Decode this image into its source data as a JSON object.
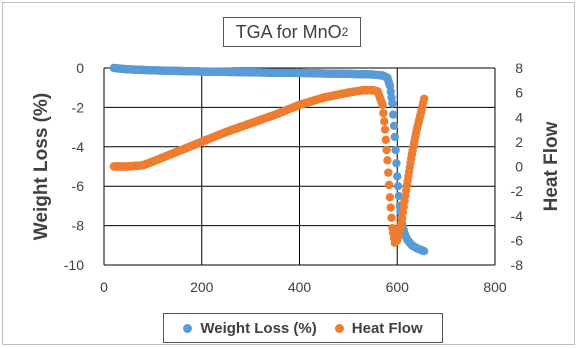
{
  "chart_data": {
    "type": "scatter",
    "title_main": "TGA for MnO",
    "title_sub": "2",
    "xlabel": "",
    "ylabel": "Weight Loss (%)",
    "y2label": "Heat Flow",
    "xlim": [
      0,
      800
    ],
    "ylim": [
      -10,
      0
    ],
    "y2lim": [
      -8,
      8
    ],
    "x_ticks": [
      "0",
      "200",
      "400",
      "600",
      "800"
    ],
    "y_ticks": [
      "0",
      "-2",
      "-4",
      "-6",
      "-8",
      "-10"
    ],
    "y2_ticks": [
      "8",
      "6",
      "4",
      "2",
      "0",
      "-2",
      "-4",
      "-6",
      "-8"
    ],
    "grid": true,
    "legend_position": "bottom",
    "series": [
      {
        "name": "Weight Loss (%)",
        "axis": "left",
        "color": "#5b9bd5",
        "x": [
          20,
          40,
          60,
          100,
          150,
          200,
          250,
          300,
          350,
          400,
          450,
          500,
          550,
          570,
          580,
          585,
          590,
          595,
          600,
          605,
          610,
          615,
          620,
          630,
          640,
          650,
          655
        ],
        "y": [
          0.0,
          -0.05,
          -0.08,
          -0.12,
          -0.15,
          -0.18,
          -0.2,
          -0.22,
          -0.24,
          -0.25,
          -0.28,
          -0.3,
          -0.33,
          -0.38,
          -0.5,
          -0.9,
          -1.8,
          -3.5,
          -5.5,
          -7.0,
          -7.9,
          -8.4,
          -8.7,
          -9.0,
          -9.15,
          -9.25,
          -9.3
        ]
      },
      {
        "name": "Heat Flow",
        "axis": "right",
        "color": "#ed7d31",
        "x": [
          20,
          50,
          80,
          100,
          150,
          200,
          250,
          300,
          350,
          400,
          450,
          500,
          530,
          550,
          560,
          570,
          575,
          580,
          585,
          590,
          595,
          600,
          605,
          610,
          615,
          620,
          630,
          640,
          650,
          655
        ],
        "y": [
          0.0,
          0.0,
          0.1,
          0.4,
          1.2,
          2.0,
          2.8,
          3.5,
          4.2,
          5.0,
          5.6,
          6.0,
          6.2,
          6.2,
          6.1,
          5.0,
          3.0,
          0.5,
          -2.5,
          -5.0,
          -6.2,
          -6.0,
          -5.2,
          -4.2,
          -2.8,
          -1.5,
          1.0,
          3.0,
          4.6,
          5.5
        ]
      }
    ]
  }
}
